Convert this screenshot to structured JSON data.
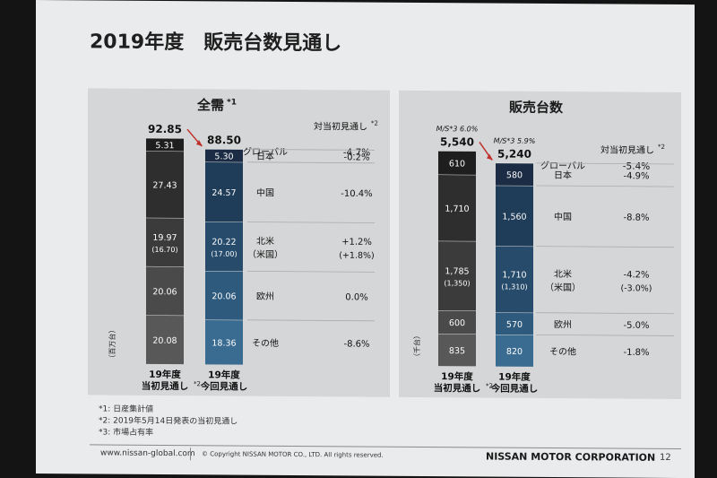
{
  "page_title": "2019年度　販売台数見通し",
  "footnotes": [
    "*1: 日産集計値",
    "*2: 2019年5月14日発表の当初見通し",
    "*3: 市場占有率"
  ],
  "footer": {
    "url": "www.nissan-global.com",
    "copyright": "© Copyright NISSAN MOTOR CO., LTD. All rights reserved.",
    "company": "NISSAN MOTOR CORPORATION",
    "page_number": "12"
  },
  "colors": {
    "initial_bar": "#3a3a3a",
    "revised_bar": "#2e5f82",
    "revised_bar_top": "#1b2c44",
    "arrow": "#c0312b"
  },
  "chart_data": [
    {
      "type": "bar",
      "title": "全需",
      "title_note": "*1",
      "unit_label": "（百万台）",
      "column_header": "対当初見通し",
      "column_header_note": "*2",
      "categories": [
        "19年度当初見通し",
        "19年度今回見通し"
      ],
      "category_labels": [
        {
          "line1": "19年度",
          "line2": "当初見通し",
          "note": "*2"
        },
        {
          "line1": "19年度",
          "line2": "今回見通し",
          "note": ""
        }
      ],
      "totals": [
        "92.85",
        "88.50"
      ],
      "total_values": [
        92.85,
        88.5
      ],
      "segments": [
        {
          "region": "日本",
          "sub": "",
          "initial": 5.31,
          "initial_label": "5.31",
          "initial_sub": "",
          "revised": 5.3,
          "revised_label": "5.30",
          "revised_sub": "",
          "change": "-0.2%",
          "change_sub": ""
        },
        {
          "region": "中国",
          "sub": "",
          "initial": 27.43,
          "initial_label": "27.43",
          "initial_sub": "",
          "revised": 24.57,
          "revised_label": "24.57",
          "revised_sub": "",
          "change": "-10.4%",
          "change_sub": ""
        },
        {
          "region": "北米",
          "sub": "（米国）",
          "initial": 19.97,
          "initial_label": "19.97",
          "initial_sub": "(16.70)",
          "revised": 20.22,
          "revised_label": "20.22",
          "revised_sub": "(17.00)",
          "change": "+1.2%",
          "change_sub": "(+1.8%)"
        },
        {
          "region": "欧州",
          "sub": "",
          "initial": 20.06,
          "initial_label": "20.06",
          "initial_sub": "",
          "revised": 20.06,
          "revised_label": "20.06",
          "revised_sub": "",
          "change": "0.0%",
          "change_sub": ""
        },
        {
          "region": "その他",
          "sub": "",
          "initial": 20.08,
          "initial_label": "20.08",
          "initial_sub": "",
          "revised": 18.36,
          "revised_label": "18.36",
          "revised_sub": "",
          "change": "-8.6%",
          "change_sub": ""
        }
      ],
      "global": {
        "label": "グローバル",
        "change": "-4.7%"
      }
    },
    {
      "type": "bar",
      "title": "販売台数",
      "title_note": "",
      "unit_label": "（千台）",
      "column_header": "対当初見通し",
      "column_header_note": "*2",
      "categories": [
        "19年度当初見通し",
        "19年度今回見通し"
      ],
      "category_labels": [
        {
          "line1": "19年度",
          "line2": "当初見通し",
          "note": "*2"
        },
        {
          "line1": "19年度",
          "line2": "今回見通し",
          "note": ""
        }
      ],
      "totals": [
        "5,540",
        "5,240"
      ],
      "total_values": [
        5540,
        5240
      ],
      "ms_labels": [
        "M/S*3 6.0%",
        "M/S*3 5.9%"
      ],
      "segments": [
        {
          "region": "日本",
          "sub": "",
          "initial": 610,
          "initial_label": "610",
          "initial_sub": "",
          "revised": 580,
          "revised_label": "580",
          "revised_sub": "",
          "change": "-4.9%",
          "change_sub": ""
        },
        {
          "region": "中国",
          "sub": "",
          "initial": 1710,
          "initial_label": "1,710",
          "initial_sub": "",
          "revised": 1560,
          "revised_label": "1,560",
          "revised_sub": "",
          "change": "-8.8%",
          "change_sub": ""
        },
        {
          "region": "北米",
          "sub": "（米国）",
          "initial": 1785,
          "initial_label": "1,785",
          "initial_sub": "(1,350)",
          "revised": 1710,
          "revised_label": "1,710",
          "revised_sub": "(1,310)",
          "change": "-4.2%",
          "change_sub": "(-3.0%)"
        },
        {
          "region": "欧州",
          "sub": "",
          "initial": 600,
          "initial_label": "600",
          "initial_sub": "",
          "revised": 570,
          "revised_label": "570",
          "revised_sub": "",
          "change": "-5.0%",
          "change_sub": ""
        },
        {
          "region": "その他",
          "sub": "",
          "initial": 835,
          "initial_label": "835",
          "initial_sub": "",
          "revised": 820,
          "revised_label": "820",
          "revised_sub": "",
          "change": "-1.8%",
          "change_sub": ""
        }
      ],
      "global": {
        "label": "グローバル",
        "change": "-5.4%"
      }
    }
  ]
}
